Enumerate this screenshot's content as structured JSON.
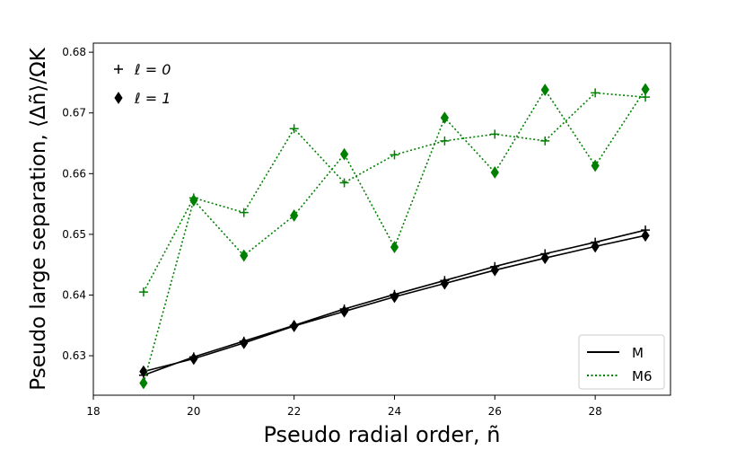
{
  "chart_data": {
    "type": "line",
    "title": "",
    "xlabel": "Pseudo radial order, ñ",
    "ylabel": "Pseudo large separation, ⟨Δñ⟩/ΩK",
    "xlim": [
      18,
      29.5
    ],
    "ylim": [
      0.6235,
      0.6815
    ],
    "xticks": [
      18,
      20,
      22,
      24,
      26,
      28
    ],
    "yticks": [
      0.63,
      0.64,
      0.65,
      0.66,
      0.67,
      0.68
    ],
    "xtick_labels": [
      "18",
      "20",
      "22",
      "24",
      "26",
      "28"
    ],
    "ytick_labels": [
      "0.63",
      "0.64",
      "0.65",
      "0.66",
      "0.67",
      "0.68"
    ],
    "grid": false,
    "x": [
      19,
      20,
      21,
      22,
      23,
      24,
      25,
      26,
      27,
      28,
      29
    ],
    "series": [
      {
        "model": "M",
        "degree": 0,
        "marker": "plus",
        "style": "solid",
        "color": "#000000",
        "values": [
          0.6268,
          0.6298,
          0.6324,
          0.635,
          0.6377,
          0.6401,
          0.6424,
          0.6447,
          0.6468,
          0.6487,
          0.6507
        ]
      },
      {
        "model": "M",
        "degree": 1,
        "marker": "diamond",
        "style": "solid",
        "color": "#000000",
        "values": [
          0.6274,
          0.6295,
          0.6321,
          0.6349,
          0.6373,
          0.6397,
          0.6419,
          0.6441,
          0.6461,
          0.648,
          0.6498
        ]
      },
      {
        "model": "M6",
        "degree": 0,
        "marker": "plus",
        "style": "dotted",
        "color": "#008000",
        "values": [
          0.6405,
          0.656,
          0.6536,
          0.6674,
          0.6585,
          0.6631,
          0.6654,
          0.6665,
          0.6654,
          0.6733,
          0.6726
        ]
      },
      {
        "model": "M6",
        "degree": 1,
        "marker": "diamond",
        "style": "dotted",
        "color": "#008000",
        "values": [
          0.6255,
          0.6556,
          0.6465,
          0.6531,
          0.6632,
          0.6479,
          0.6692,
          0.6602,
          0.6738,
          0.6613,
          0.6739
        ]
      }
    ],
    "marker_legend": {
      "placement": "top-left",
      "entries": [
        {
          "marker": "plus",
          "label": "ℓ = 0"
        },
        {
          "marker": "diamond",
          "label": "ℓ = 1"
        }
      ]
    },
    "line_legend": {
      "placement": "bottom-right",
      "entries": [
        {
          "label": "M",
          "style": "solid",
          "color": "#000000"
        },
        {
          "label": "M6",
          "style": "dotted",
          "color": "#008000"
        }
      ]
    }
  }
}
